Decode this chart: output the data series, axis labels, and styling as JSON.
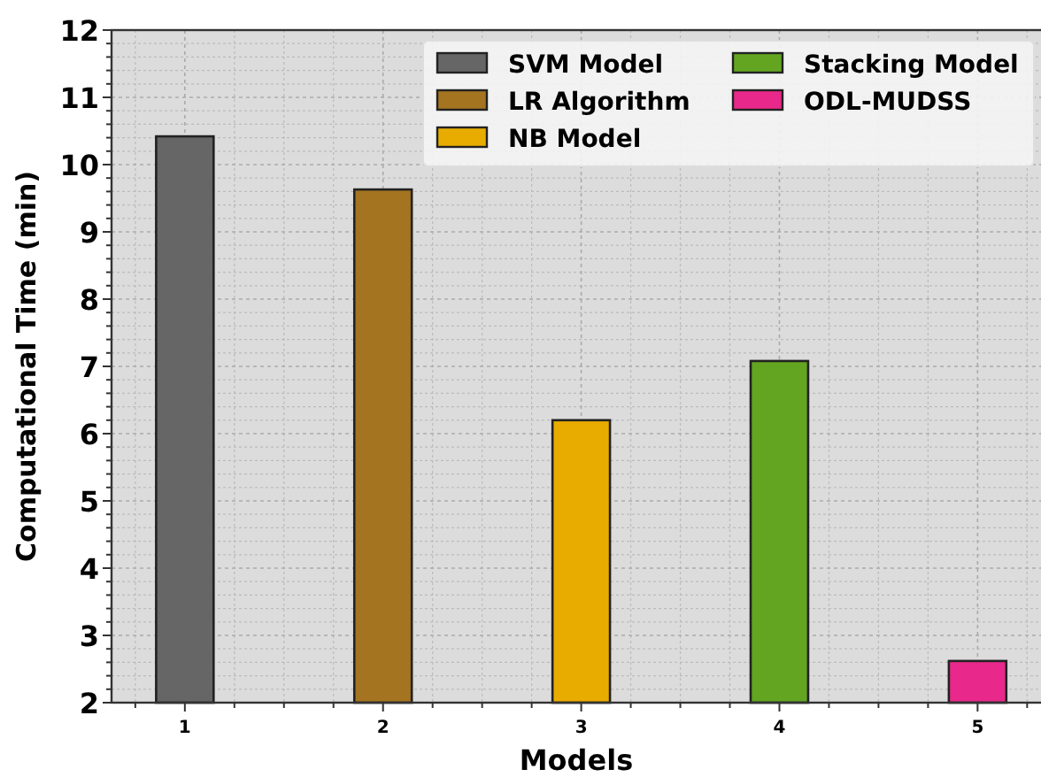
{
  "chart_data": {
    "type": "bar",
    "xlabel": "Models",
    "ylabel": "Computational Time (min)",
    "series": [
      {
        "name": "SVM Model",
        "color": "#666666",
        "x": [
          1
        ],
        "values": [
          10.42
        ]
      },
      {
        "name": "LR Algorithm",
        "color": "#a47420",
        "x": [
          2
        ],
        "values": [
          9.63
        ]
      },
      {
        "name": "NB Model",
        "color": "#e8ac00",
        "x": [
          3
        ],
        "values": [
          6.2
        ]
      },
      {
        "name": "Stacking Model",
        "color": "#63a521",
        "x": [
          4
        ],
        "values": [
          7.08
        ]
      },
      {
        "name": "ODL-MUDSS",
        "color": "#e8288a",
        "x": [
          5
        ],
        "values": [
          2.62
        ]
      }
    ],
    "xlim": [
      0.63,
      5.32
    ],
    "xticks": [
      1,
      2,
      3,
      4,
      5
    ],
    "ylim": [
      2,
      12
    ],
    "yticks": [
      2,
      3,
      4,
      5,
      6,
      7,
      8,
      9,
      10,
      11,
      12
    ],
    "grid": true,
    "legend": "top right"
  }
}
